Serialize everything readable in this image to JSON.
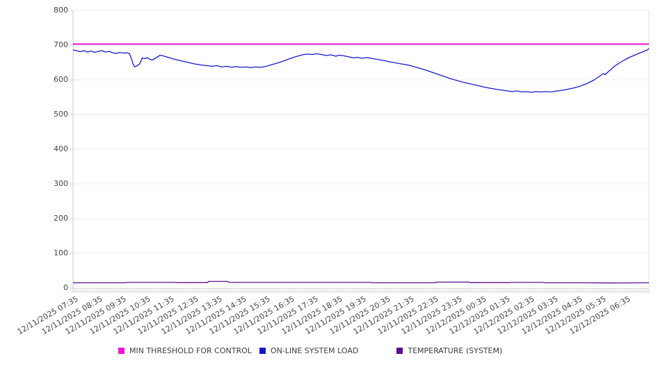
{
  "chart_data": {
    "type": "line",
    "title": "",
    "xlabel": "",
    "ylabel": "",
    "ylim": [
      0,
      800
    ],
    "yticks": [
      0,
      100,
      200,
      300,
      400,
      500,
      600,
      700,
      800
    ],
    "x_hours_span": 24,
    "grid": "horizontal",
    "grid_color": "#ededed",
    "axis_color": "#c9c9c9",
    "border_color": "#e3e3e3",
    "legend_position": "bottom",
    "minor_tick_count": 288,
    "xtick_labels": [
      "12/11/2025 07:35",
      "12/11/2025 08:35",
      "12/11/2025 09:35",
      "12/11/2025 10:35",
      "12/11/2025 11:35",
      "12/11/2025 12:35",
      "12/11/2025 13:35",
      "12/11/2025 14:35",
      "12/11/2025 15:35",
      "12/11/2025 16:35",
      "12/11/2025 17:35",
      "12/11/2025 18:35",
      "12/11/2025 19:35",
      "12/11/2025 20:35",
      "12/11/2025 21:35",
      "12/11/2025 22:35",
      "12/11/2025 23:35",
      "12/12/2025 00:35",
      "12/12/2025 01:35",
      "12/12/2025 02:35",
      "12/12/2025 03:35",
      "12/12/2025 04:35",
      "12/12/2025 05:35",
      "12/12/2025 06:35"
    ],
    "series": [
      {
        "name": "MIN THRESHOLD FOR CONTROL",
        "color": "#ea15d9",
        "line_width": 2,
        "points": [
          [
            0,
            703
          ],
          [
            24,
            703
          ]
        ]
      },
      {
        "name": "ON-LINE SYSTEM LOAD",
        "color": "#1717cd",
        "line_width": 1.3,
        "points": [
          [
            0,
            686
          ],
          [
            0.15,
            684
          ],
          [
            0.3,
            681
          ],
          [
            0.45,
            684
          ],
          [
            0.6,
            680
          ],
          [
            0.75,
            683
          ],
          [
            0.9,
            679
          ],
          [
            1.05,
            682
          ],
          [
            1.2,
            684
          ],
          [
            1.35,
            680
          ],
          [
            1.5,
            682
          ],
          [
            1.65,
            678
          ],
          [
            1.8,
            676
          ],
          [
            1.95,
            679
          ],
          [
            2.1,
            677
          ],
          [
            2.25,
            678
          ],
          [
            2.35,
            676
          ],
          [
            2.45,
            658
          ],
          [
            2.5,
            645
          ],
          [
            2.58,
            637
          ],
          [
            2.65,
            640
          ],
          [
            2.75,
            644
          ],
          [
            2.82,
            652
          ],
          [
            2.88,
            663
          ],
          [
            3.0,
            661
          ],
          [
            3.1,
            664
          ],
          [
            3.2,
            659
          ],
          [
            3.3,
            657
          ],
          [
            3.45,
            663
          ],
          [
            3.55,
            667
          ],
          [
            3.62,
            671
          ],
          [
            3.75,
            669
          ],
          [
            3.9,
            666
          ],
          [
            4.1,
            662
          ],
          [
            4.3,
            658
          ],
          [
            4.55,
            654
          ],
          [
            4.8,
            650
          ],
          [
            5.05,
            646
          ],
          [
            5.3,
            643
          ],
          [
            5.55,
            641
          ],
          [
            5.8,
            639
          ],
          [
            6.0,
            641
          ],
          [
            6.2,
            637
          ],
          [
            6.4,
            639
          ],
          [
            6.6,
            636
          ],
          [
            6.8,
            638
          ],
          [
            7.0,
            636
          ],
          [
            7.2,
            637
          ],
          [
            7.4,
            635
          ],
          [
            7.6,
            637
          ],
          [
            7.8,
            636
          ],
          [
            8.0,
            638
          ],
          [
            8.2,
            642
          ],
          [
            8.4,
            646
          ],
          [
            8.6,
            650
          ],
          [
            8.8,
            655
          ],
          [
            9.0,
            660
          ],
          [
            9.2,
            665
          ],
          [
            9.4,
            669
          ],
          [
            9.55,
            672
          ],
          [
            9.75,
            674
          ],
          [
            9.95,
            673
          ],
          [
            10.15,
            675
          ],
          [
            10.35,
            673
          ],
          [
            10.55,
            670
          ],
          [
            10.75,
            672
          ],
          [
            10.95,
            668
          ],
          [
            11.1,
            671
          ],
          [
            11.3,
            669
          ],
          [
            11.5,
            666
          ],
          [
            11.7,
            663
          ],
          [
            11.85,
            665
          ],
          [
            12.05,
            662
          ],
          [
            12.25,
            664
          ],
          [
            12.5,
            661
          ],
          [
            12.75,
            658
          ],
          [
            13.0,
            655
          ],
          [
            13.25,
            651
          ],
          [
            13.5,
            648
          ],
          [
            13.75,
            645
          ],
          [
            14.0,
            642
          ],
          [
            14.2,
            638
          ],
          [
            14.45,
            633
          ],
          [
            14.7,
            628
          ],
          [
            14.95,
            622
          ],
          [
            15.2,
            616
          ],
          [
            15.45,
            610
          ],
          [
            15.7,
            604
          ],
          [
            15.95,
            599
          ],
          [
            16.2,
            594
          ],
          [
            16.45,
            590
          ],
          [
            16.7,
            586
          ],
          [
            16.95,
            582
          ],
          [
            17.2,
            578
          ],
          [
            17.45,
            575
          ],
          [
            17.7,
            572
          ],
          [
            17.9,
            570
          ],
          [
            18.1,
            568
          ],
          [
            18.3,
            566
          ],
          [
            18.5,
            568
          ],
          [
            18.7,
            565
          ],
          [
            18.9,
            566
          ],
          [
            19.1,
            564
          ],
          [
            19.3,
            566
          ],
          [
            19.5,
            565
          ],
          [
            19.7,
            566
          ],
          [
            19.9,
            565
          ],
          [
            20.1,
            567
          ],
          [
            20.3,
            569
          ],
          [
            20.5,
            571
          ],
          [
            20.7,
            574
          ],
          [
            20.9,
            577
          ],
          [
            21.1,
            581
          ],
          [
            21.3,
            586
          ],
          [
            21.5,
            592
          ],
          [
            21.7,
            599
          ],
          [
            21.85,
            606
          ],
          [
            22.0,
            613
          ],
          [
            22.1,
            618
          ],
          [
            22.18,
            615
          ],
          [
            22.3,
            623
          ],
          [
            22.45,
            632
          ],
          [
            22.6,
            641
          ],
          [
            22.8,
            650
          ],
          [
            23.0,
            658
          ],
          [
            23.2,
            665
          ],
          [
            23.4,
            671
          ],
          [
            23.6,
            677
          ],
          [
            23.8,
            682
          ],
          [
            23.95,
            687
          ],
          [
            24,
            690
          ]
        ]
      },
      {
        "name": "TEMPERATURE (SYSTEM)",
        "color": "#5c0e8f",
        "line_width": 1.3,
        "points": [
          [
            0,
            15
          ],
          [
            2.2,
            15
          ],
          [
            2.25,
            16
          ],
          [
            4.25,
            16
          ],
          [
            4.3,
            15.5
          ],
          [
            5.6,
            15.5
          ],
          [
            5.65,
            19
          ],
          [
            6.45,
            19
          ],
          [
            6.5,
            16
          ],
          [
            10.4,
            16
          ],
          [
            12.4,
            16
          ],
          [
            12.45,
            15
          ],
          [
            15.1,
            15
          ],
          [
            15.15,
            17
          ],
          [
            16.5,
            17
          ],
          [
            16.55,
            15.5
          ],
          [
            18.2,
            15.5
          ],
          [
            18.25,
            16
          ],
          [
            19.6,
            16
          ],
          [
            19.65,
            15
          ],
          [
            21.3,
            15
          ],
          [
            22.5,
            14.5
          ],
          [
            24,
            15
          ]
        ]
      }
    ]
  }
}
